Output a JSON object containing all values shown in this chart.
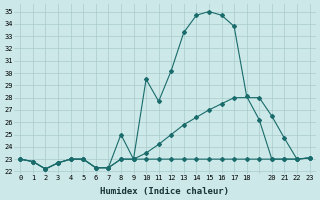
{
  "xlabel": "Humidex (Indice chaleur)",
  "bg_color": "#cce8e8",
  "grid_color": "#aacccc",
  "line_color": "#1a6b6b",
  "xlim": [
    -0.5,
    23.5
  ],
  "ylim": [
    21.8,
    35.6
  ],
  "yticks": [
    22,
    23,
    24,
    25,
    26,
    27,
    28,
    29,
    30,
    31,
    32,
    33,
    34,
    35
  ],
  "xticks": [
    0,
    1,
    2,
    3,
    4,
    5,
    6,
    7,
    8,
    9,
    10,
    11,
    12,
    13,
    14,
    15,
    16,
    17,
    18,
    19,
    20,
    21,
    22,
    23
  ],
  "xtick_labels": [
    "0",
    "1",
    "2",
    "3",
    "4",
    "5",
    "6",
    "7",
    "8",
    "9",
    "10",
    "11",
    "12",
    "13",
    "14",
    "15",
    "16",
    "17",
    "18",
    "",
    "20",
    "21",
    "22",
    "23"
  ],
  "line1_x": [
    0,
    1,
    2,
    3,
    4,
    5,
    6,
    7,
    8,
    9,
    10,
    11,
    12,
    13,
    14,
    15,
    16,
    17,
    18,
    19,
    20,
    21,
    22,
    23
  ],
  "line1_y": [
    23.0,
    22.8,
    22.2,
    22.7,
    23.0,
    23.0,
    22.3,
    22.3,
    25.0,
    23.0,
    29.5,
    27.7,
    30.2,
    33.3,
    34.7,
    35.0,
    34.7,
    33.8,
    28.1,
    26.2,
    23.0,
    23.0,
    23.0,
    23.1
  ],
  "line2_x": [
    0,
    1,
    2,
    3,
    4,
    5,
    6,
    7,
    8,
    9,
    10,
    11,
    12,
    13,
    14,
    15,
    16,
    17,
    18,
    19,
    20,
    21,
    22,
    23
  ],
  "line2_y": [
    23.0,
    22.8,
    22.2,
    22.7,
    23.0,
    23.0,
    22.3,
    22.3,
    23.0,
    23.0,
    23.0,
    23.0,
    23.0,
    23.0,
    23.0,
    23.0,
    23.0,
    23.0,
    23.0,
    23.0,
    23.0,
    23.0,
    23.0,
    23.1
  ],
  "line3_x": [
    0,
    1,
    2,
    3,
    4,
    5,
    6,
    7,
    8,
    9,
    10,
    11,
    12,
    13,
    14,
    15,
    16,
    17,
    19,
    20,
    21,
    22,
    23
  ],
  "line3_y": [
    23.0,
    22.8,
    22.2,
    22.7,
    23.0,
    23.0,
    22.3,
    22.3,
    23.0,
    23.0,
    23.5,
    24.2,
    25.0,
    25.8,
    26.4,
    27.0,
    27.5,
    28.0,
    28.0,
    26.5,
    24.7,
    23.0,
    23.1
  ]
}
